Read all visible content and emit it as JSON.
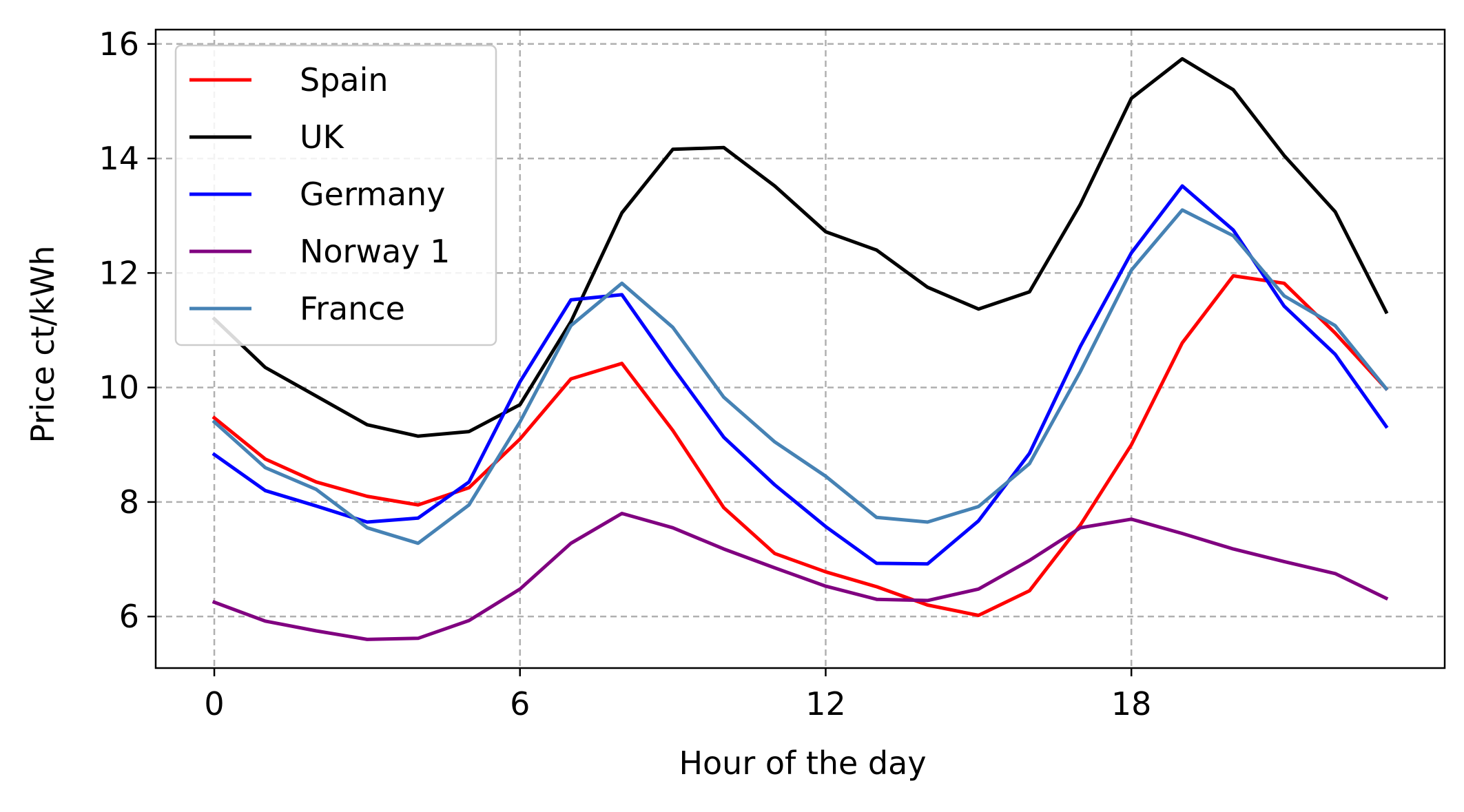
{
  "chart_data": {
    "type": "line",
    "title": "",
    "xlabel": "Hour of the day",
    "ylabel": "Price ct/kWh",
    "xlim": [
      -1.15,
      24.15
    ],
    "ylim": [
      5.1,
      16.25
    ],
    "xticks": [
      0,
      6,
      12,
      18
    ],
    "xtick_labels": [
      "0",
      "6",
      "12",
      "18"
    ],
    "yticks": [
      6,
      8,
      10,
      12,
      14,
      16
    ],
    "ytick_labels": [
      "6",
      "8",
      "10",
      "12",
      "14",
      "16"
    ],
    "grid": true,
    "legend_position": "upper-left",
    "x": [
      0,
      1,
      2,
      3,
      4,
      5,
      6,
      7,
      8,
      9,
      10,
      11,
      12,
      13,
      14,
      15,
      16,
      17,
      18,
      19,
      20,
      21,
      22,
      23
    ],
    "series": [
      {
        "name": "Spain",
        "color": "#ff0000",
        "values": [
          9.47,
          8.75,
          8.35,
          8.1,
          7.95,
          8.25,
          9.1,
          10.15,
          10.42,
          9.25,
          7.9,
          7.1,
          6.78,
          6.52,
          6.2,
          6.02,
          6.45,
          7.6,
          9.0,
          10.78,
          11.95,
          11.82,
          10.95,
          9.98
        ]
      },
      {
        "name": "UK",
        "color": "#000000",
        "values": [
          11.2,
          10.35,
          9.85,
          9.35,
          9.15,
          9.23,
          9.7,
          11.15,
          13.05,
          14.16,
          14.19,
          13.52,
          12.72,
          12.4,
          11.75,
          11.37,
          11.67,
          13.2,
          15.05,
          15.74,
          15.2,
          14.05,
          13.07,
          11.32
        ]
      },
      {
        "name": "Germany",
        "color": "#0000ff",
        "values": [
          8.83,
          8.2,
          7.93,
          7.65,
          7.72,
          8.35,
          10.1,
          11.53,
          11.62,
          10.35,
          9.13,
          8.3,
          7.57,
          6.93,
          6.92,
          7.67,
          8.85,
          10.72,
          12.35,
          13.52,
          12.75,
          11.42,
          10.58,
          9.32
        ]
      },
      {
        "name": "Norway 1",
        "color": "#800080",
        "values": [
          6.25,
          5.92,
          5.75,
          5.6,
          5.62,
          5.93,
          6.48,
          7.28,
          7.8,
          7.55,
          7.18,
          6.85,
          6.53,
          6.3,
          6.28,
          6.48,
          6.98,
          7.55,
          7.7,
          7.45,
          7.18,
          6.96,
          6.75,
          6.32
        ]
      },
      {
        "name": "France",
        "color": "#4682b4",
        "values": [
          9.4,
          8.6,
          8.22,
          7.55,
          7.28,
          7.95,
          9.4,
          11.08,
          11.82,
          11.05,
          9.83,
          9.05,
          8.45,
          7.73,
          7.65,
          7.92,
          8.67,
          10.28,
          12.05,
          13.1,
          12.65,
          11.6,
          11.08,
          9.98
        ]
      }
    ]
  }
}
